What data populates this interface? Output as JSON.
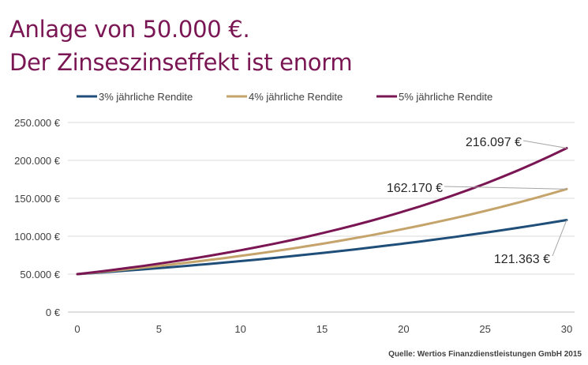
{
  "title": {
    "line1": "Anlage von 50.000 €.",
    "line2": "Der Zinseszinseffekt ist enorm"
  },
  "source": "Quelle: Wertios Finanzdienstleistungen GmbH 2015",
  "chart_data": {
    "type": "line",
    "xlim": [
      0,
      30
    ],
    "ylim": [
      0,
      250000
    ],
    "x_ticks": [
      "0",
      "5",
      "10",
      "15",
      "20",
      "25",
      "30"
    ],
    "y_ticks": [
      "0 €",
      "50.000 €",
      "100.000 €",
      "150.000 €",
      "200.000 €",
      "250.000 €"
    ],
    "grid": "horizontal",
    "legend_position": "top",
    "x": [
      0,
      1,
      2,
      3,
      4,
      5,
      6,
      7,
      8,
      9,
      10,
      11,
      12,
      13,
      14,
      15,
      16,
      17,
      18,
      19,
      20,
      21,
      22,
      23,
      24,
      25,
      26,
      27,
      28,
      29,
      30
    ],
    "series": [
      {
        "name": "3% jährliche Rendite",
        "color": "#1f4e79",
        "values": [
          50000,
          51500,
          53045,
          54636,
          56275,
          57964,
          59703,
          61494,
          63339,
          65239,
          67196,
          69212,
          71288,
          73427,
          75629,
          77898,
          80235,
          82642,
          85122,
          87675,
          90306,
          93015,
          95805,
          98679,
          101640,
          104689,
          107830,
          111064,
          114396,
          117828,
          121363
        ]
      },
      {
        "name": "4% jährliche Rendite",
        "color": "#c4a46b",
        "values": [
          50000,
          52000,
          54080,
          56243,
          58493,
          60833,
          63266,
          65797,
          68428,
          71166,
          74012,
          76973,
          80052,
          83254,
          86584,
          90047,
          93649,
          97395,
          101291,
          105343,
          109556,
          113938,
          118496,
          123236,
          128165,
          133292,
          138623,
          144168,
          149935,
          155932,
          162170
        ]
      },
      {
        "name": "5% jährliche Rendite",
        "color": "#7a1653",
        "values": [
          50000,
          52500,
          55125,
          57881,
          60775,
          63814,
          67005,
          70355,
          73873,
          77566,
          81445,
          85517,
          89793,
          94282,
          98997,
          103946,
          109144,
          114601,
          120331,
          126348,
          132665,
          139298,
          146263,
          153576,
          161255,
          169318,
          177784,
          186673,
          196007,
          205807,
          216097
        ]
      }
    ],
    "annotations": [
      {
        "label": "216.097 €",
        "series": 2,
        "x": 30,
        "y": 216097
      },
      {
        "label": "162.170 €",
        "series": 1,
        "x": 30,
        "y": 162170
      },
      {
        "label": "121.363 €",
        "series": 0,
        "x": 30,
        "y": 121363
      }
    ]
  }
}
